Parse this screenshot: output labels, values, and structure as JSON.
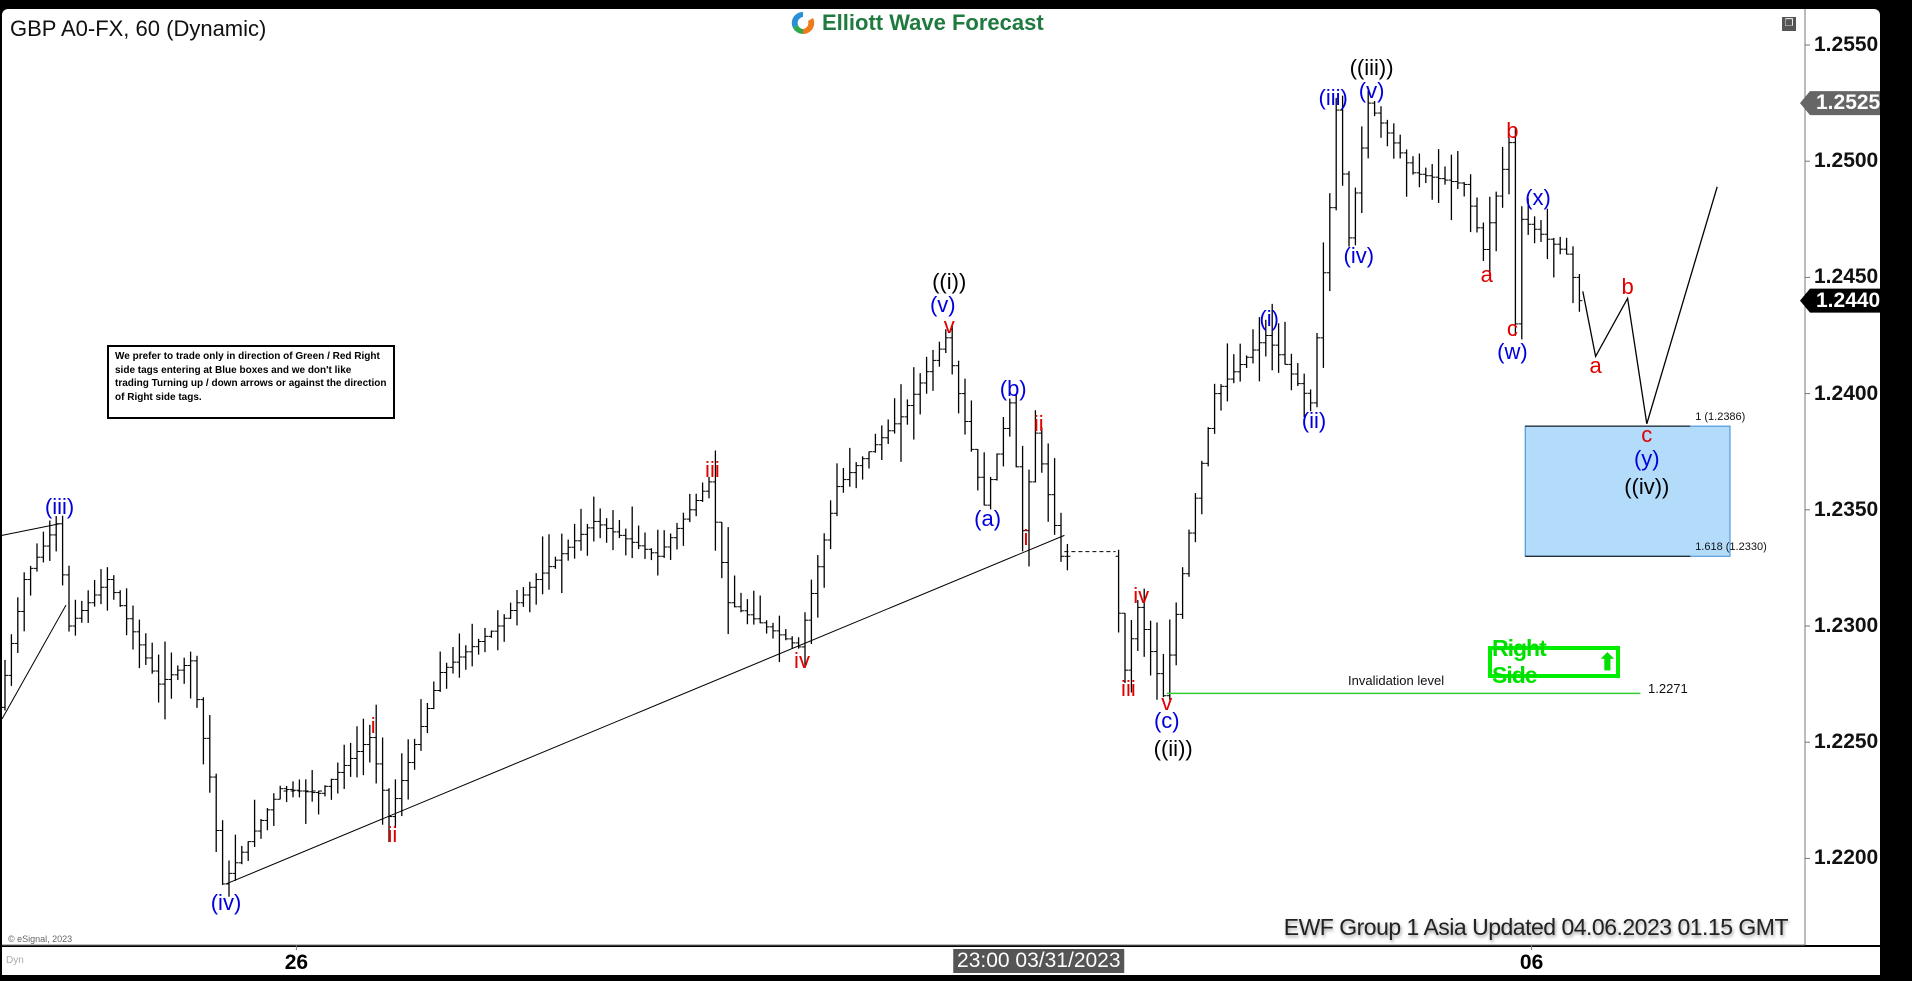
{
  "header": {
    "title": "GBP A0-FX, 60 (Dynamic)",
    "logo_text": "Elliott Wave Forecast"
  },
  "note": "We prefer to trade only in direction of Green / Red Right side tags entering at Blue boxes and we don't like trading Turning up / down arrows or against the direction of Right side tags.",
  "right_side_tag": {
    "label": "Right Side",
    "arrow": "up-arrow-icon",
    "color": "#00ee00"
  },
  "footer": "EWF Group 1 Asia Updated 04.06.2023 01.15 GMT",
  "copyright": "© eSignal, 2023",
  "dyn_label": "Dyn",
  "chart_data": {
    "type": "ohlc",
    "interval": "60",
    "ylim": [
      1.2165,
      1.2575
    ],
    "y_ticks": [
      "1.2550",
      "1.2500",
      "1.2450",
      "1.2400",
      "1.2350",
      "1.2300",
      "1.2250",
      "1.2200"
    ],
    "price_tags": [
      {
        "value": "1.2525",
        "color": "#666666"
      },
      {
        "value": "1.2440",
        "color": "#000000"
      }
    ],
    "x_ticks": [
      {
        "bar": 46,
        "label": "26"
      },
      {
        "bar": 239,
        "label": "06"
      }
    ],
    "crosshair_label": {
      "bar": 162,
      "label": "23:00 03/31/2023"
    },
    "price_path": [
      [
        0,
        1.2265
      ],
      [
        4,
        1.232
      ],
      [
        9,
        1.2344
      ],
      [
        11,
        1.23
      ],
      [
        17,
        1.232
      ],
      [
        25,
        1.2275
      ],
      [
        30,
        1.2285
      ],
      [
        33,
        1.2235
      ],
      [
        35,
        1.2189
      ],
      [
        44,
        1.223
      ],
      [
        50,
        1.2228
      ],
      [
        58,
        1.2252
      ],
      [
        61,
        1.2218
      ],
      [
        69,
        1.228
      ],
      [
        78,
        1.23
      ],
      [
        84,
        1.232
      ],
      [
        93,
        1.2345
      ],
      [
        103,
        1.233
      ],
      [
        111,
        1.2362
      ],
      [
        114,
        1.231
      ],
      [
        125,
        1.2291
      ],
      [
        131,
        1.236
      ],
      [
        141,
        1.239
      ],
      [
        148,
        1.2424
      ],
      [
        150,
        1.24
      ],
      [
        154,
        1.2352
      ],
      [
        158,
        1.2396
      ],
      [
        160,
        1.2341
      ],
      [
        162,
        1.2383
      ],
      [
        166,
        1.233
      ],
      [
        174,
        1.233
      ],
      [
        176,
        1.2281
      ],
      [
        178,
        1.2308
      ],
      [
        182,
        1.227
      ],
      [
        186,
        1.234
      ],
      [
        190,
        1.24
      ],
      [
        198,
        1.2425
      ],
      [
        205,
        1.2396
      ],
      [
        208,
        1.248
      ],
      [
        209,
        1.2522
      ],
      [
        211,
        1.2467
      ],
      [
        214,
        1.2525
      ],
      [
        221,
        1.2495
      ],
      [
        229,
        1.249
      ],
      [
        232,
        1.2462
      ],
      [
        236,
        1.2508
      ],
      [
        237,
        1.243
      ],
      [
        238,
        1.2475
      ],
      [
        245,
        1.246
      ],
      [
        247,
        1.244
      ]
    ],
    "projection": [
      [
        247,
        1.2444
      ],
      [
        249,
        1.2416
      ],
      [
        254,
        1.2441
      ],
      [
        257,
        1.2387
      ],
      [
        268,
        1.2489
      ]
    ],
    "trendlines": [
      [
        [
          35,
          1.2189
        ],
        [
          166,
          1.2339
        ]
      ],
      [
        [
          0,
          1.226
        ],
        [
          10,
          1.2309
        ]
      ],
      [
        [
          0,
          1.2339
        ],
        [
          9,
          1.2344
        ]
      ]
    ],
    "invalidation": {
      "label": "Invalidation level",
      "value": "1.2271",
      "price": 1.2271,
      "from_bar": 182,
      "to_bar": 256,
      "color": "#33cc33"
    },
    "target_box": {
      "from_bar": 238,
      "to_bar": 270,
      "top": 1.2386,
      "bottom": 1.233,
      "top_label": "1 (1.2386)",
      "bottom_label": "1.618 (1.2330)",
      "color": "#b3dcfb"
    },
    "wave_labels": [
      {
        "t": "(iii)",
        "c": "blue",
        "bar": 9,
        "p": 1.2351
      },
      {
        "t": "(iv)",
        "c": "blue",
        "bar": 35,
        "p": 1.2181
      },
      {
        "t": "i",
        "c": "red",
        "bar": 58,
        "p": 1.2257
      },
      {
        "t": "ii",
        "c": "red",
        "bar": 61,
        "p": 1.221
      },
      {
        "t": "iii",
        "c": "red",
        "bar": 111,
        "p": 1.2367
      },
      {
        "t": "iv",
        "c": "red",
        "bar": 125,
        "p": 1.2285
      },
      {
        "t": "((i))",
        "c": "black",
        "bar": 148,
        "p": 1.2448
      },
      {
        "t": "(v)",
        "c": "blue",
        "bar": 147,
        "p": 1.2438
      },
      {
        "t": "v",
        "c": "red",
        "bar": 148,
        "p": 1.2429
      },
      {
        "t": "(b)",
        "c": "blue",
        "bar": 158,
        "p": 1.2402
      },
      {
        "t": "(a)",
        "c": "blue",
        "bar": 154,
        "p": 1.2346
      },
      {
        "t": "ii",
        "c": "red",
        "bar": 162,
        "p": 1.2387
      },
      {
        "t": "i",
        "c": "red",
        "bar": 160,
        "p": 1.2338
      },
      {
        "t": "iv",
        "c": "red",
        "bar": 178,
        "p": 1.2313
      },
      {
        "t": "iii",
        "c": "red",
        "bar": 176,
        "p": 1.2273
      },
      {
        "t": "v",
        "c": "red",
        "bar": 182,
        "p": 1.2267
      },
      {
        "t": "(c)",
        "c": "blue",
        "bar": 182,
        "p": 1.2259
      },
      {
        "t": "((ii))",
        "c": "black",
        "bar": 183,
        "p": 1.2247
      },
      {
        "t": "(i)",
        "c": "blue",
        "bar": 198,
        "p": 1.2432
      },
      {
        "t": "(ii)",
        "c": "blue",
        "bar": 205,
        "p": 1.2388
      },
      {
        "t": "((iii))",
        "c": "black",
        "bar": 214,
        "p": 1.254
      },
      {
        "t": "(iii)",
        "c": "blue",
        "bar": 208,
        "p": 1.2527
      },
      {
        "t": "(v)",
        "c": "blue",
        "bar": 214,
        "p": 1.253
      },
      {
        "t": "(iv)",
        "c": "blue",
        "bar": 212,
        "p": 1.2459
      },
      {
        "t": "a",
        "c": "red",
        "bar": 232,
        "p": 1.2451
      },
      {
        "t": "b",
        "c": "red",
        "bar": 236,
        "p": 1.2513
      },
      {
        "t": "(x)",
        "c": "blue",
        "bar": 240,
        "p": 1.2484
      },
      {
        "t": "c",
        "c": "red",
        "bar": 236,
        "p": 1.2428
      },
      {
        "t": "(w)",
        "c": "blue",
        "bar": 236,
        "p": 1.2418
      },
      {
        "t": "b",
        "c": "red",
        "bar": 254,
        "p": 1.2446
      },
      {
        "t": "a",
        "c": "red",
        "bar": 249,
        "p": 1.2412
      },
      {
        "t": "c",
        "c": "red",
        "bar": 257,
        "p": 1.2382
      },
      {
        "t": "(y)",
        "c": "blue",
        "bar": 257,
        "p": 1.2372
      },
      {
        "t": "((iv))",
        "c": "black",
        "bar": 257,
        "p": 1.236
      }
    ],
    "colors": {
      "red": "#e00000",
      "blue": "#0000dd",
      "black": "#000000"
    }
  }
}
